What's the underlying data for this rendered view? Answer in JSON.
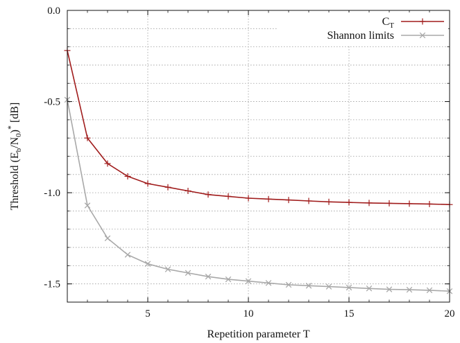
{
  "chart_data": {
    "type": "line",
    "xlabel": "Repetition parameter T",
    "ylabel": {
      "base": "Threshold (E",
      "sub1": "b",
      "mid": "/N",
      "sub2": "0",
      "close": ")",
      "sup": "*",
      "unit": " [dB]"
    },
    "xlim": [
      1,
      20
    ],
    "ylim": [
      -1.6,
      0.0
    ],
    "xticks": [
      {
        "value": 5,
        "label": "5"
      },
      {
        "value": 10,
        "label": "10"
      },
      {
        "value": 15,
        "label": "15"
      },
      {
        "value": 20,
        "label": "20"
      }
    ],
    "yticks": [
      {
        "value": 0.0,
        "label": "0.0"
      },
      {
        "value": -0.5,
        "label": "-0.5"
      },
      {
        "value": -1.0,
        "label": "-1.0"
      },
      {
        "value": -1.5,
        "label": "-1.5"
      }
    ],
    "grid": true,
    "legend_position": "top-right",
    "series": [
      {
        "name": "C",
        "name_sub": "T",
        "color": "#a01c1c",
        "marker": "plus",
        "x": [
          1,
          2,
          3,
          4,
          5,
          6,
          7,
          8,
          9,
          10,
          11,
          12,
          13,
          14,
          15,
          16,
          17,
          18,
          19,
          20
        ],
        "y": [
          -0.22,
          -0.7,
          -0.84,
          -0.91,
          -0.95,
          -0.97,
          -0.99,
          -1.01,
          -1.02,
          -1.03,
          -1.035,
          -1.04,
          -1.045,
          -1.05,
          -1.053,
          -1.056,
          -1.058,
          -1.06,
          -1.062,
          -1.065
        ]
      },
      {
        "name": "Shannon limits",
        "color": "#a8a8a8",
        "marker": "x",
        "x": [
          1,
          2,
          3,
          4,
          5,
          6,
          7,
          8,
          9,
          10,
          11,
          12,
          13,
          14,
          15,
          16,
          17,
          18,
          19,
          20
        ],
        "y": [
          -0.49,
          -1.07,
          -1.25,
          -1.34,
          -1.39,
          -1.42,
          -1.44,
          -1.46,
          -1.475,
          -1.485,
          -1.495,
          -1.505,
          -1.51,
          -1.515,
          -1.52,
          -1.525,
          -1.53,
          -1.532,
          -1.535,
          -1.54
        ]
      }
    ]
  }
}
